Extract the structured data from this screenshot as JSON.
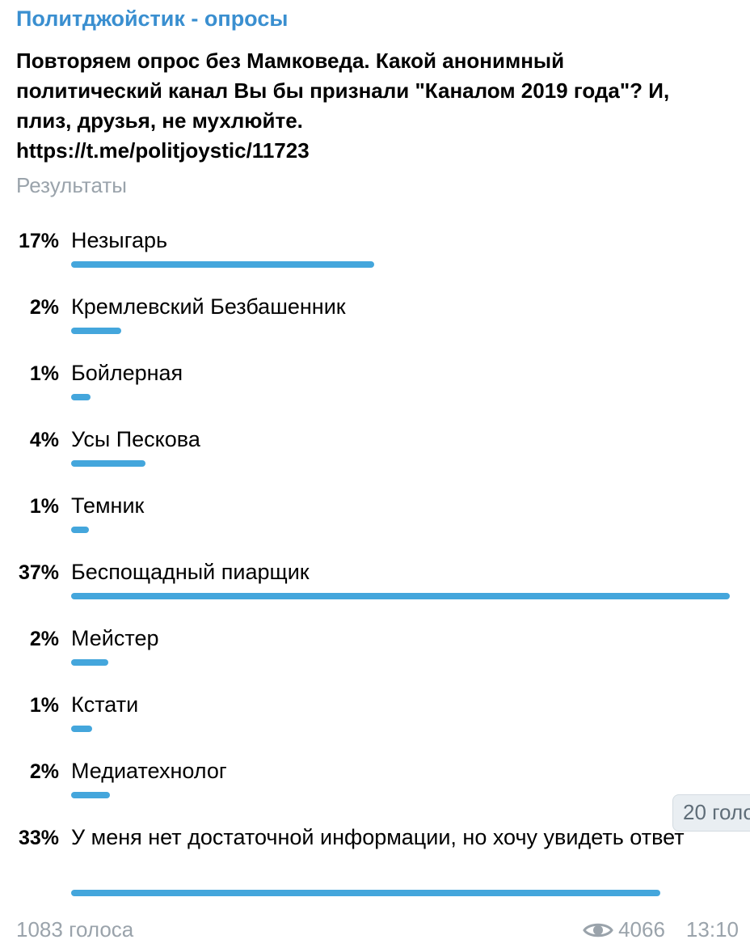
{
  "channel": {
    "title": "Политджойстик - опросы"
  },
  "poll": {
    "question": "Повторяем опрос без Мамковеда. Какой анонимный\nполитический канал Вы бы признали \"Каналом 2019 года\"? И,\nплиз, друзья, не мухлюйте.",
    "link": "https://t.me/politjoystic/11723",
    "results_label": "Результаты",
    "options": [
      {
        "percent_label": "17%",
        "text": "Незыгарь",
        "bar_fraction": 0.46
      },
      {
        "percent_label": "2%",
        "text": "Кремлевский Безбашенник",
        "bar_fraction": 0.076
      },
      {
        "percent_label": "1%",
        "text": "Бойлерная",
        "bar_fraction": 0.03
      },
      {
        "percent_label": "4%",
        "text": "Усы Пескова",
        "bar_fraction": 0.113
      },
      {
        "percent_label": "1%",
        "text": "Темник",
        "bar_fraction": 0.027
      },
      {
        "percent_label": "37%",
        "text": "Беспощадный пиарщик",
        "bar_fraction": 1.0
      },
      {
        "percent_label": "2%",
        "text": "Мейстер",
        "bar_fraction": 0.056
      },
      {
        "percent_label": "1%",
        "text": "Кстати",
        "bar_fraction": 0.032
      },
      {
        "percent_label": "2%",
        "text": "Медиатехнолог",
        "bar_fraction": 0.059
      },
      {
        "percent_label": "33%",
        "text": "У меня нет достаточной информации, но хочу увидеть ответ",
        "bar_fraction": 0.894
      }
    ],
    "total_votes": "1083 голоса"
  },
  "date_badge": "20 голо",
  "footer": {
    "views": "4066",
    "time": "13:10",
    "views_icon": "eye-icon"
  },
  "colors": {
    "accent": "#3a8fd0",
    "bar": "#44a6dc",
    "muted": "#9aa3ab"
  }
}
